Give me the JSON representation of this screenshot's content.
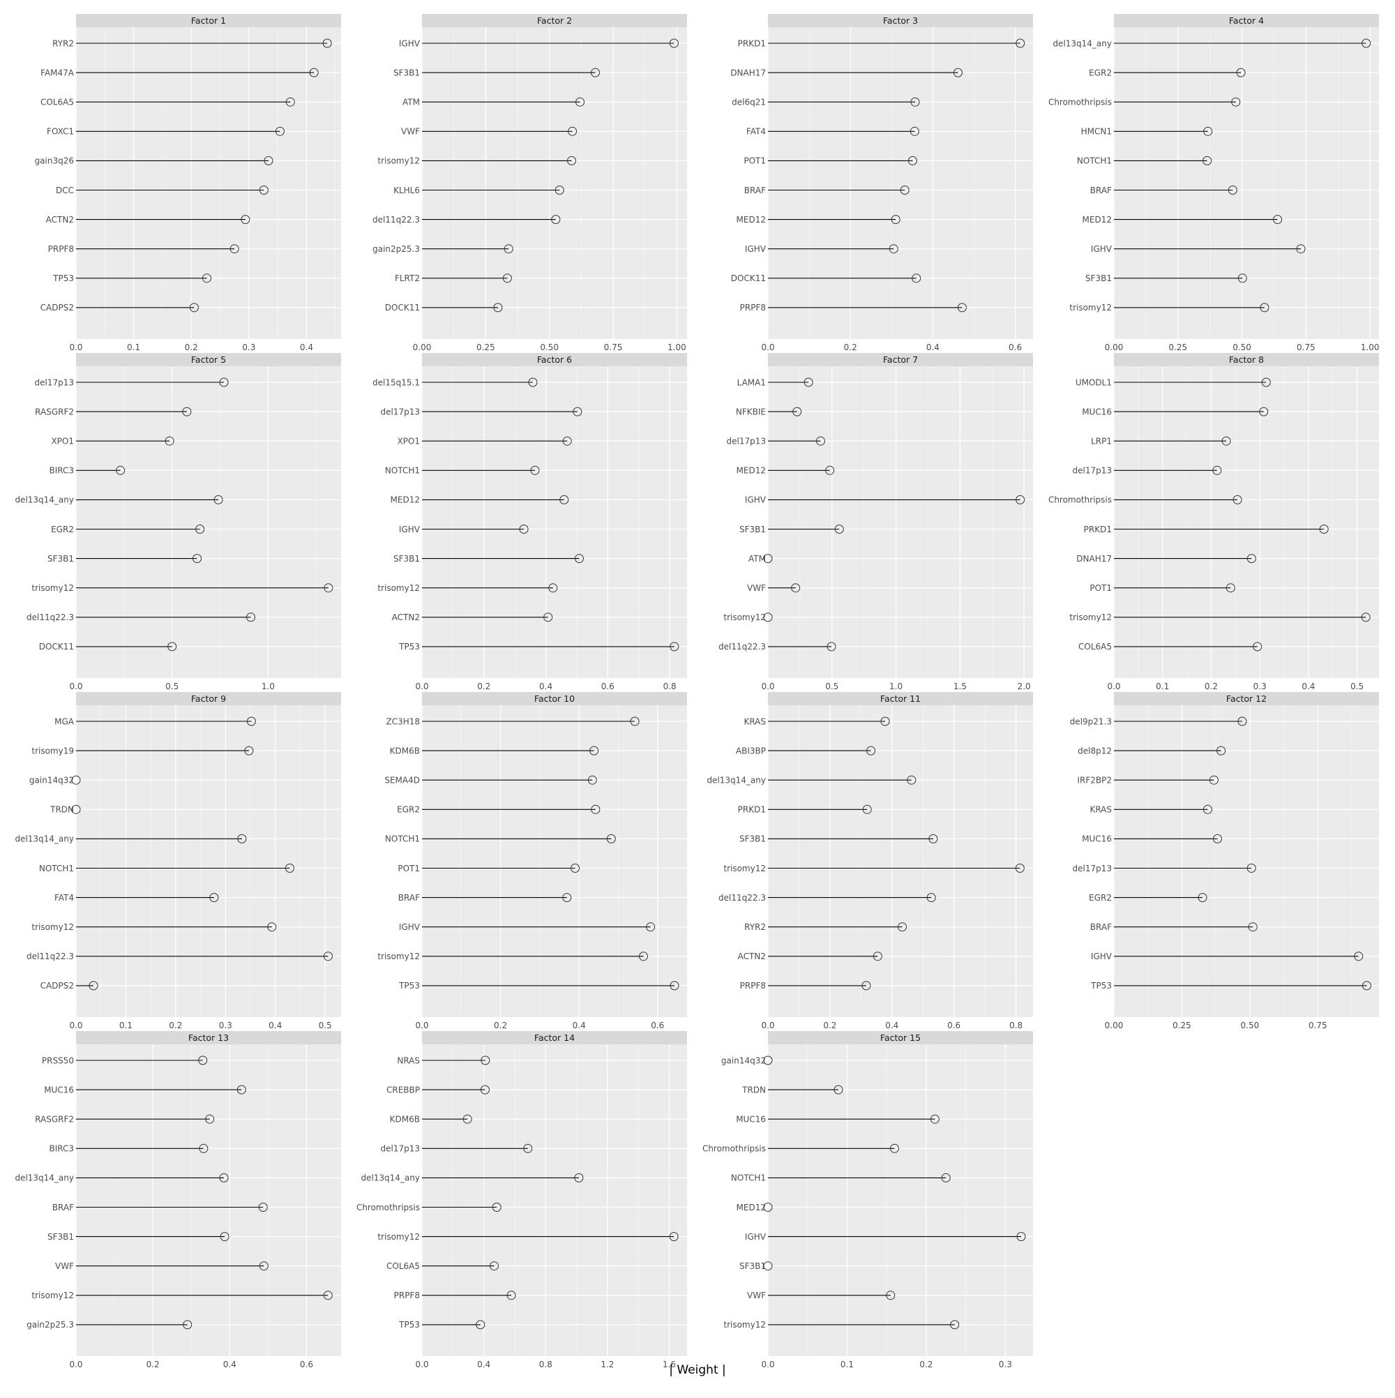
{
  "chart_data": {
    "type": "lollipop",
    "xlabel": "| Weight |",
    "colors": {
      "panel_bg": "#ebebeb",
      "strip_bg": "#d9d9d9",
      "grid_major": "#ffffff",
      "segment": "#000000",
      "point_stroke": "#333333",
      "tick_text": "#4d4d4d"
    },
    "panels": [
      {
        "title": "Factor 1",
        "xlim": [
          0,
          0.46
        ],
        "xticks": [
          0,
          0.1,
          0.2,
          0.3,
          0.4
        ],
        "xtick_labels": [
          "0.0",
          "0.1",
          "0.2",
          "0.3",
          "0.4"
        ],
        "labels": [
          "RYR2",
          "FAM47A",
          "COL6A5",
          "FOXC1",
          "gain3q26",
          "DCC",
          "ACTN2",
          "PRPF8",
          "TP53",
          "CADPS2"
        ],
        "values": [
          0.436,
          0.413,
          0.372,
          0.354,
          0.334,
          0.326,
          0.294,
          0.275,
          0.227,
          0.205
        ]
      },
      {
        "title": "Factor 2",
        "xlim": [
          0,
          1.04
        ],
        "xticks": [
          0,
          0.25,
          0.5,
          0.75,
          1.0
        ],
        "xtick_labels": [
          "0.00",
          "0.25",
          "0.50",
          "0.75",
          "1.00"
        ],
        "labels": [
          "IGHV",
          "SF3B1",
          "ATM",
          "VWF",
          "trisomy12",
          "KLHL6",
          "del11q22.3",
          "gain2p25.3",
          "FLRT2",
          "DOCK11"
        ],
        "values": [
          0.989,
          0.68,
          0.62,
          0.59,
          0.587,
          0.54,
          0.525,
          0.34,
          0.335,
          0.298
        ]
      },
      {
        "title": "Factor 3",
        "xlim": [
          0,
          0.643
        ],
        "xticks": [
          0,
          0.2,
          0.4,
          0.6
        ],
        "xtick_labels": [
          "0.0",
          "0.2",
          "0.4",
          "0.6"
        ],
        "labels": [
          "PRKD1",
          "DNAH17",
          "del6q21",
          "FAT4",
          "POT1",
          "BRAF",
          "MED12",
          "IGHV",
          "DOCK11",
          "PRPF8"
        ],
        "values": [
          0.612,
          0.461,
          0.357,
          0.356,
          0.351,
          0.332,
          0.31,
          0.305,
          0.36,
          0.471
        ]
      },
      {
        "title": "Factor 4",
        "xlim": [
          0,
          1.035
        ],
        "xticks": [
          0,
          0.25,
          0.5,
          0.75,
          1.0
        ],
        "xtick_labels": [
          "0.00",
          "0.25",
          "0.50",
          "0.75",
          "1.00"
        ],
        "labels": [
          "del13q14_any",
          "EGR2",
          "Chromothripsis",
          "HMCN1",
          "NOTCH1",
          "BRAF",
          "MED12",
          "IGHV",
          "SF3B1",
          "trisomy12"
        ],
        "values": [
          0.985,
          0.496,
          0.476,
          0.367,
          0.364,
          0.464,
          0.639,
          0.73,
          0.502,
          0.588
        ]
      },
      {
        "title": "Factor 5",
        "xlim": [
          0,
          1.38
        ],
        "xticks": [
          0,
          0.5,
          1.0
        ],
        "xtick_labels": [
          "0.0",
          "0.5",
          "1.0"
        ],
        "labels": [
          "del17p13",
          "RASGRF2",
          "XPO1",
          "BIRC3",
          "del13q14_any",
          "EGR2",
          "SF3B1",
          "trisomy12",
          "del11q22.3",
          "DOCK11"
        ],
        "values": [
          0.77,
          0.577,
          0.487,
          0.231,
          0.741,
          0.645,
          0.63,
          1.314,
          0.91,
          0.5
        ]
      },
      {
        "title": "Factor 6",
        "xlim": [
          0,
          0.856
        ],
        "xticks": [
          0,
          0.2,
          0.4,
          0.6,
          0.8
        ],
        "xtick_labels": [
          "0.0",
          "0.2",
          "0.4",
          "0.6",
          "0.8"
        ],
        "labels": [
          "del15q15.1",
          "del17p13",
          "XPO1",
          "NOTCH1",
          "MED12",
          "IGHV",
          "SF3B1",
          "trisomy12",
          "ACTN2",
          "TP53"
        ],
        "values": [
          0.358,
          0.502,
          0.469,
          0.365,
          0.459,
          0.329,
          0.508,
          0.423,
          0.407,
          0.815
        ]
      },
      {
        "title": "Factor 7",
        "xlim": [
          0,
          2.07
        ],
        "xticks": [
          0,
          0.5,
          1.0,
          1.5,
          2.0
        ],
        "xtick_labels": [
          "0.0",
          "0.5",
          "1.0",
          "1.5",
          "2.0"
        ],
        "labels": [
          "LAMA1",
          "NFKBIE",
          "del17p13",
          "MED12",
          "IGHV",
          "SF3B1",
          "ATM",
          "VWF",
          "trisomy12",
          "del11q22.3"
        ],
        "values": [
          0.317,
          0.227,
          0.411,
          0.483,
          1.97,
          0.557,
          0.0,
          0.216,
          0.0,
          0.496
        ]
      },
      {
        "title": "Factor 8",
        "xlim": [
          0,
          0.545
        ],
        "xticks": [
          0,
          0.1,
          0.2,
          0.3,
          0.4,
          0.5
        ],
        "xtick_labels": [
          "0.0",
          "0.1",
          "0.2",
          "0.3",
          "0.4",
          "0.5"
        ],
        "labels": [
          "UMODL1",
          "MUC16",
          "LRP1",
          "del17p13",
          "Chromothripsis",
          "PRKD1",
          "DNAH17",
          "POT1",
          "trisomy12",
          "COL6A5"
        ],
        "values": [
          0.313,
          0.308,
          0.231,
          0.212,
          0.254,
          0.432,
          0.283,
          0.24,
          0.518,
          0.295
        ]
      },
      {
        "title": "Factor 9",
        "xlim": [
          0,
          0.532
        ],
        "xticks": [
          0,
          0.1,
          0.2,
          0.3,
          0.4,
          0.5
        ],
        "xtick_labels": [
          "0.0",
          "0.1",
          "0.2",
          "0.3",
          "0.4",
          "0.5"
        ],
        "labels": [
          "MGA",
          "trisomy19",
          "gain14q32",
          "TRDN",
          "del13q14_any",
          "NOTCH1",
          "FAT4",
          "trisomy12",
          "del11q22.3",
          "CADPS2"
        ],
        "values": [
          0.352,
          0.347,
          0.0,
          0.0,
          0.333,
          0.429,
          0.277,
          0.393,
          0.506,
          0.035
        ]
      },
      {
        "title": "Factor 10",
        "xlim": [
          0,
          0.675
        ],
        "xticks": [
          0,
          0.2,
          0.4,
          0.6
        ],
        "xtick_labels": [
          "0.0",
          "0.2",
          "0.4",
          "0.6"
        ],
        "labels": [
          "ZC3H18",
          "KDM6B",
          "SEMA4D",
          "EGR2",
          "NOTCH1",
          "POT1",
          "BRAF",
          "IGHV",
          "trisomy12",
          "TP53"
        ],
        "values": [
          0.542,
          0.438,
          0.434,
          0.442,
          0.482,
          0.39,
          0.369,
          0.582,
          0.564,
          0.643
        ]
      },
      {
        "title": "Factor 11",
        "xlim": [
          0,
          0.855
        ],
        "xticks": [
          0,
          0.2,
          0.4,
          0.6,
          0.8
        ],
        "xtick_labels": [
          "0.0",
          "0.2",
          "0.4",
          "0.6",
          "0.8"
        ],
        "labels": [
          "KRAS",
          "ABI3BP",
          "del13q14_any",
          "PRKD1",
          "SF3B1",
          "trisomy12",
          "del11q22.3",
          "RYR2",
          "ACTN2",
          "PRPF8"
        ],
        "values": [
          0.378,
          0.332,
          0.463,
          0.32,
          0.533,
          0.813,
          0.527,
          0.433,
          0.354,
          0.317
        ]
      },
      {
        "title": "Factor 12",
        "xlim": [
          0,
          0.975
        ],
        "xticks": [
          0,
          0.25,
          0.5,
          0.75
        ],
        "xtick_labels": [
          "0.00",
          "0.25",
          "0.50",
          "0.75"
        ],
        "labels": [
          "del9p21.3",
          "del8p12",
          "IRF2BP2",
          "KRAS",
          "MUC16",
          "del17p13",
          "EGR2",
          "BRAF",
          "IGHV",
          "TP53"
        ],
        "values": [
          0.472,
          0.394,
          0.368,
          0.345,
          0.381,
          0.506,
          0.326,
          0.511,
          0.9,
          0.93
        ]
      },
      {
        "title": "Factor 13",
        "xlim": [
          0,
          0.69
        ],
        "xticks": [
          0,
          0.2,
          0.4,
          0.6
        ],
        "xtick_labels": [
          "0.0",
          "0.2",
          "0.4",
          "0.6"
        ],
        "labels": [
          "PRSS50",
          "MUC16",
          "RASGRF2",
          "BIRC3",
          "del13q14_any",
          "BRAF",
          "SF3B1",
          "VWF",
          "trisomy12",
          "gain2p25.3"
        ],
        "values": [
          0.33,
          0.431,
          0.348,
          0.332,
          0.385,
          0.487,
          0.387,
          0.489,
          0.656,
          0.29
        ]
      },
      {
        "title": "Factor 14",
        "xlim": [
          0,
          1.715
        ],
        "xticks": [
          0,
          0.4,
          0.8,
          1.2,
          1.6
        ],
        "xtick_labels": [
          "0.0",
          "0.4",
          "0.8",
          "1.2",
          "1.6"
        ],
        "labels": [
          "NRAS",
          "CREBBP",
          "KDM6B",
          "del17p13",
          "del13q14_any",
          "Chromothripsis",
          "trisomy12",
          "COL6A5",
          "PRPF8",
          "TP53"
        ],
        "values": [
          0.41,
          0.408,
          0.294,
          0.685,
          1.015,
          0.484,
          1.63,
          0.467,
          0.578,
          0.378
        ]
      },
      {
        "title": "Factor 15",
        "xlim": [
          0,
          0.335
        ],
        "xticks": [
          0,
          0.1,
          0.2,
          0.3
        ],
        "xtick_labels": [
          "0.0",
          "0.1",
          "0.2",
          "0.3"
        ],
        "labels": [
          "gain14q32",
          "TRDN",
          "MUC16",
          "Chromothripsis",
          "NOTCH1",
          "MED12",
          "IGHV",
          "SF3B1",
          "VWF",
          "trisomy12"
        ],
        "values": [
          0.0,
          0.089,
          0.211,
          0.16,
          0.225,
          0.0,
          0.32,
          0.0,
          0.155,
          0.236
        ]
      }
    ]
  }
}
